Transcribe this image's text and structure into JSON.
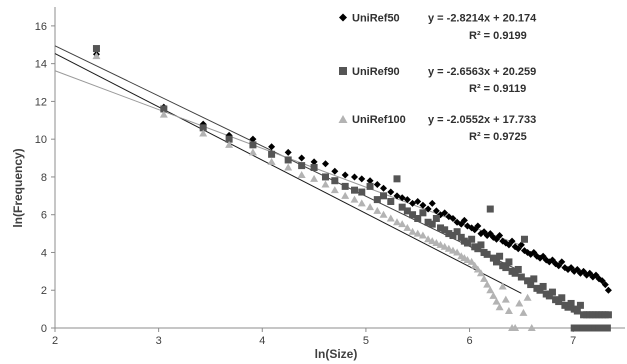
{
  "chart_data": {
    "type": "scatter",
    "xlabel": "ln(Size)",
    "ylabel": "ln(Frequency)",
    "xlim": [
      2,
      7.5
    ],
    "ylim": [
      0,
      17
    ],
    "xticks": [
      "2",
      "3",
      "4",
      "5",
      "6",
      "7"
    ],
    "yticks": [
      "0",
      "2",
      "4",
      "6",
      "8",
      "10",
      "12",
      "14",
      "16"
    ],
    "grid": false,
    "legend": "top-right",
    "series": [
      {
        "name": "UniRef50",
        "marker": "diamond",
        "color": "#000000",
        "equation": "y = -2.8214x + 20.174",
        "r2": "R² = 0.9199",
        "trend": {
          "slope": -2.8214,
          "intercept": 20.174
        },
        "points": [
          [
            2.4,
            14.5
          ],
          [
            3.05,
            11.7
          ],
          [
            3.43,
            10.8
          ],
          [
            3.68,
            10.2
          ],
          [
            3.91,
            10.0
          ],
          [
            4.09,
            9.6
          ],
          [
            4.25,
            9.3
          ],
          [
            4.38,
            9.0
          ],
          [
            4.5,
            8.8
          ],
          [
            4.61,
            8.7
          ],
          [
            4.7,
            8.3
          ],
          [
            4.8,
            8.1
          ],
          [
            4.89,
            8.0
          ],
          [
            4.96,
            7.9
          ],
          [
            5.04,
            7.8
          ],
          [
            5.11,
            7.6
          ],
          [
            5.17,
            7.4
          ],
          [
            5.24,
            7.2
          ],
          [
            5.3,
            7.0
          ],
          [
            5.35,
            6.9
          ],
          [
            5.4,
            6.8
          ],
          [
            5.45,
            6.6
          ],
          [
            5.5,
            6.7
          ],
          [
            5.55,
            6.5
          ],
          [
            5.6,
            6.3
          ],
          [
            5.64,
            6.6
          ],
          [
            5.68,
            6.2
          ],
          [
            5.72,
            6.0
          ],
          [
            5.76,
            6.1
          ],
          [
            5.8,
            5.9
          ],
          [
            5.84,
            5.8
          ],
          [
            5.88,
            5.6
          ],
          [
            5.92,
            5.5
          ],
          [
            5.95,
            5.7
          ],
          [
            5.98,
            5.4
          ],
          [
            6.02,
            5.3
          ],
          [
            6.05,
            5.2
          ],
          [
            6.08,
            5.4
          ],
          [
            6.11,
            5.0
          ],
          [
            6.14,
            5.1
          ],
          [
            6.17,
            4.9
          ],
          [
            6.2,
            5.0
          ],
          [
            6.23,
            4.8
          ],
          [
            6.26,
            4.7
          ],
          [
            6.29,
            4.9
          ],
          [
            6.32,
            4.6
          ],
          [
            6.35,
            4.5
          ],
          [
            6.38,
            4.4
          ],
          [
            6.41,
            4.6
          ],
          [
            6.44,
            4.3
          ],
          [
            6.47,
            4.2
          ],
          [
            6.5,
            4.4
          ],
          [
            6.53,
            4.1
          ],
          [
            6.56,
            4.0
          ],
          [
            6.59,
            3.9
          ],
          [
            6.62,
            4.0
          ],
          [
            6.65,
            3.8
          ],
          [
            6.68,
            3.7
          ],
          [
            6.71,
            3.8
          ],
          [
            6.74,
            3.6
          ],
          [
            6.77,
            3.5
          ],
          [
            6.8,
            3.6
          ],
          [
            6.83,
            3.4
          ],
          [
            6.86,
            3.3
          ],
          [
            6.89,
            3.5
          ],
          [
            6.92,
            3.2
          ],
          [
            6.95,
            3.1
          ],
          [
            6.98,
            3.2
          ],
          [
            7.01,
            3.0
          ],
          [
            7.04,
            3.1
          ],
          [
            7.07,
            2.9
          ],
          [
            7.1,
            3.0
          ],
          [
            7.13,
            2.8
          ],
          [
            7.16,
            2.9
          ],
          [
            7.19,
            2.7
          ],
          [
            7.22,
            2.8
          ],
          [
            7.25,
            2.6
          ],
          [
            7.28,
            2.5
          ],
          [
            7.31,
            2.3
          ],
          [
            7.34,
            2.0
          ]
        ]
      },
      {
        "name": "UniRef90",
        "marker": "square",
        "color": "#555555",
        "equation": "y = -2.6563x + 20.259",
        "r2": "R² = 0.9119",
        "trend": {
          "slope": -2.6563,
          "intercept": 20.259
        },
        "points": [
          [
            2.4,
            14.8
          ],
          [
            3.05,
            11.6
          ],
          [
            3.43,
            10.6
          ],
          [
            3.68,
            10.0
          ],
          [
            3.91,
            9.7
          ],
          [
            4.09,
            9.2
          ],
          [
            4.25,
            8.9
          ],
          [
            4.38,
            8.6
          ],
          [
            4.5,
            8.5
          ],
          [
            4.61,
            8.0
          ],
          [
            4.7,
            7.8
          ],
          [
            4.8,
            7.5
          ],
          [
            4.89,
            7.3
          ],
          [
            4.96,
            7.2
          ],
          [
            5.04,
            7.5
          ],
          [
            5.11,
            6.8
          ],
          [
            5.17,
            7.0
          ],
          [
            5.24,
            6.7
          ],
          [
            5.3,
            7.9
          ],
          [
            5.35,
            6.4
          ],
          [
            5.4,
            6.2
          ],
          [
            5.45,
            6.0
          ],
          [
            5.5,
            5.8
          ],
          [
            5.55,
            6.1
          ],
          [
            5.6,
            5.6
          ],
          [
            5.64,
            5.5
          ],
          [
            5.68,
            5.8
          ],
          [
            5.72,
            5.3
          ],
          [
            5.76,
            5.2
          ],
          [
            5.8,
            5.0
          ],
          [
            5.84,
            4.9
          ],
          [
            5.88,
            5.1
          ],
          [
            5.92,
            4.8
          ],
          [
            5.95,
            4.6
          ],
          [
            5.98,
            4.5
          ],
          [
            6.02,
            4.7
          ],
          [
            6.05,
            4.3
          ],
          [
            6.08,
            4.2
          ],
          [
            6.11,
            4.4
          ],
          [
            6.14,
            4.0
          ],
          [
            6.17,
            3.9
          ],
          [
            6.2,
            6.3
          ],
          [
            6.23,
            3.7
          ],
          [
            6.26,
            3.5
          ],
          [
            6.29,
            3.8
          ],
          [
            6.32,
            3.3
          ],
          [
            6.35,
            3.2
          ],
          [
            6.38,
            3.5
          ],
          [
            6.41,
            3.0
          ],
          [
            6.44,
            2.9
          ],
          [
            6.47,
            3.1
          ],
          [
            6.5,
            2.7
          ],
          [
            6.53,
            4.7
          ],
          [
            6.56,
            2.5
          ],
          [
            6.59,
            2.3
          ],
          [
            6.62,
            2.6
          ],
          [
            6.65,
            2.1
          ],
          [
            6.68,
            2.0
          ],
          [
            6.71,
            2.2
          ],
          [
            6.74,
            1.8
          ],
          [
            6.77,
            1.7
          ],
          [
            6.8,
            1.9
          ],
          [
            6.83,
            1.5
          ],
          [
            6.86,
            1.4
          ],
          [
            6.89,
            1.6
          ],
          [
            6.92,
            1.2
          ],
          [
            6.95,
            1.1
          ],
          [
            6.98,
            1.3
          ],
          [
            7.01,
            1.0
          ],
          [
            7.04,
            0.9
          ],
          [
            7.07,
            1.2
          ],
          [
            7.1,
            0.7
          ],
          [
            7.13,
            0.7
          ],
          [
            7.16,
            0.7
          ],
          [
            7.19,
            0.7
          ],
          [
            7.22,
            0.7
          ],
          [
            7.25,
            0.7
          ],
          [
            7.28,
            0.7
          ],
          [
            7.31,
            0.7
          ],
          [
            7.34,
            0.7
          ],
          [
            7.01,
            0
          ],
          [
            7.05,
            0
          ],
          [
            7.09,
            0
          ],
          [
            7.13,
            0
          ],
          [
            7.17,
            0
          ],
          [
            7.21,
            0
          ],
          [
            7.25,
            0
          ],
          [
            7.29,
            0
          ],
          [
            7.33,
            0
          ]
        ]
      },
      {
        "name": "UniRef100",
        "marker": "triangle",
        "color": "#b3b3b3",
        "equation": "y = -2.0552x + 17.733",
        "r2": "R² = 0.9725",
        "trend": {
          "slope": -2.0552,
          "intercept": 17.733
        },
        "points": [
          [
            2.4,
            14.4
          ],
          [
            3.05,
            11.3
          ],
          [
            3.43,
            10.3
          ],
          [
            3.68,
            9.7
          ],
          [
            3.91,
            9.3
          ],
          [
            4.09,
            8.8
          ],
          [
            4.25,
            8.5
          ],
          [
            4.38,
            8.1
          ],
          [
            4.5,
            7.9
          ],
          [
            4.61,
            7.6
          ],
          [
            4.7,
            7.3
          ],
          [
            4.8,
            7.0
          ],
          [
            4.89,
            6.8
          ],
          [
            4.96,
            6.6
          ],
          [
            5.04,
            6.4
          ],
          [
            5.11,
            6.2
          ],
          [
            5.17,
            6.0
          ],
          [
            5.24,
            5.8
          ],
          [
            5.3,
            5.6
          ],
          [
            5.35,
            5.5
          ],
          [
            5.4,
            5.3
          ],
          [
            5.45,
            5.1
          ],
          [
            5.5,
            5.0
          ],
          [
            5.55,
            4.9
          ],
          [
            5.6,
            4.7
          ],
          [
            5.64,
            4.6
          ],
          [
            5.68,
            4.5
          ],
          [
            5.72,
            4.4
          ],
          [
            5.76,
            4.3
          ],
          [
            5.8,
            4.2
          ],
          [
            5.84,
            4.1
          ],
          [
            5.88,
            4.0
          ],
          [
            5.92,
            3.8
          ],
          [
            5.95,
            3.7
          ],
          [
            5.98,
            3.6
          ],
          [
            6.02,
            3.5
          ],
          [
            6.05,
            3.3
          ],
          [
            6.08,
            3.1
          ],
          [
            6.11,
            2.9
          ],
          [
            6.14,
            2.6
          ],
          [
            6.17,
            2.3
          ],
          [
            6.2,
            2.0
          ],
          [
            6.23,
            1.7
          ],
          [
            6.26,
            1.4
          ],
          [
            6.29,
            1.1
          ],
          [
            6.32,
            2.2
          ],
          [
            6.35,
            1.5
          ],
          [
            6.38,
            0.9
          ],
          [
            6.41,
            0
          ],
          [
            6.44,
            0
          ],
          [
            6.48,
            1.3
          ],
          [
            6.52,
            0.8
          ],
          [
            6.56,
            1.6
          ],
          [
            6.6,
            0
          ]
        ]
      }
    ]
  }
}
